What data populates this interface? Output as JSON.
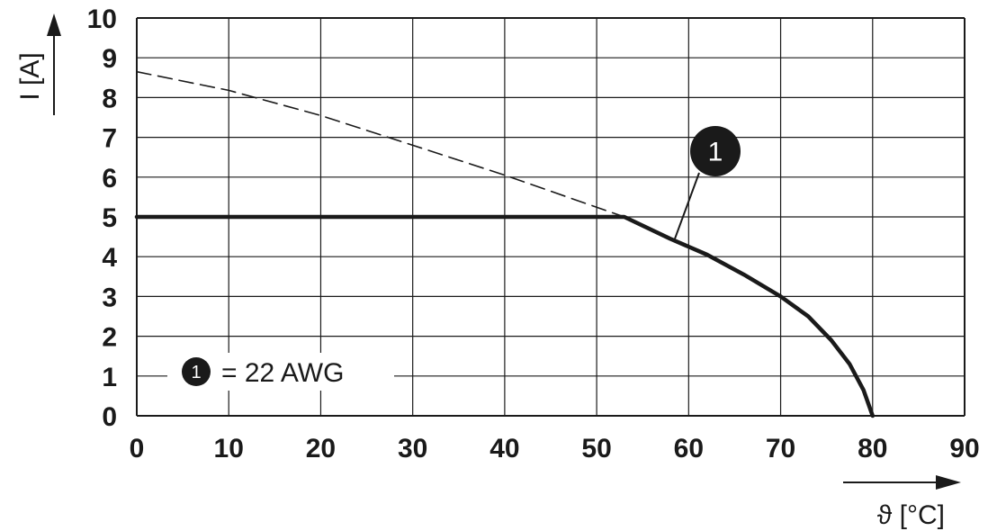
{
  "chart_data": {
    "type": "line",
    "xlabel": "ϑ [°C]",
    "ylabel": "I [A]",
    "xlim": [
      0,
      90
    ],
    "ylim": [
      0,
      10
    ],
    "x_ticks": [
      "0",
      "10",
      "20",
      "30",
      "40",
      "50",
      "60",
      "70",
      "80",
      "90"
    ],
    "y_ticks": [
      "0",
      "1",
      "2",
      "3",
      "4",
      "5",
      "6",
      "7",
      "8",
      "9",
      "10"
    ],
    "grid": true,
    "series": [
      {
        "name": "22 AWG",
        "style": "solid",
        "points": [
          [
            0,
            5
          ],
          [
            53,
            5
          ],
          [
            58,
            4.45
          ],
          [
            62,
            4.05
          ],
          [
            66,
            3.55
          ],
          [
            70,
            3.0
          ],
          [
            73,
            2.5
          ],
          [
            75.5,
            1.9
          ],
          [
            77.5,
            1.3
          ],
          [
            79,
            0.65
          ],
          [
            80,
            0
          ]
        ]
      },
      {
        "style": "dashed",
        "points": [
          [
            0,
            8.65
          ],
          [
            10,
            8.18
          ],
          [
            20,
            7.55
          ],
          [
            30,
            6.8
          ],
          [
            40,
            6.05
          ],
          [
            53,
            5.0
          ]
        ]
      }
    ],
    "callout": {
      "label": "1",
      "x": 58.5,
      "y": 4.45
    },
    "legend": {
      "marker": "1",
      "text": "= 22 AWG",
      "position": "bottom-left"
    }
  },
  "colors": {
    "line": "#1a1a1a",
    "grid": "#1a1a1a",
    "background": "#ffffff"
  }
}
